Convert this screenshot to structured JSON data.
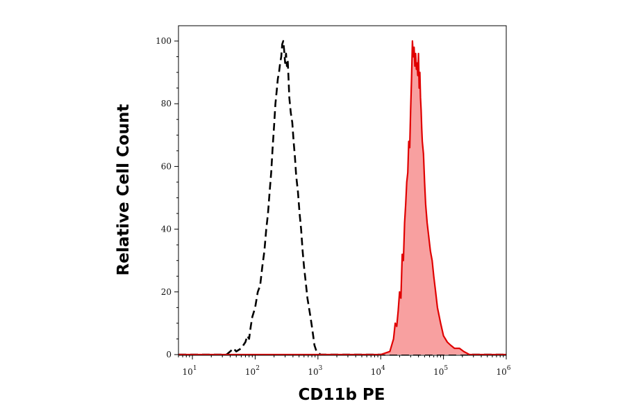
{
  "chart_data": {
    "type": "area",
    "xlabel": "CD11b PE",
    "ylabel": "Relative Cell Count",
    "x_scale": "log",
    "xlim": [
      6,
      1000000
    ],
    "ylim": [
      0,
      100
    ],
    "x_ticks": [
      {
        "base": "10",
        "exp": "1",
        "value": 10
      },
      {
        "base": "10",
        "exp": "2",
        "value": 100
      },
      {
        "base": "10",
        "exp": "3",
        "value": 1000
      },
      {
        "base": "10",
        "exp": "4",
        "value": 10000
      },
      {
        "base": "10",
        "exp": "5",
        "value": 100000
      },
      {
        "base": "10",
        "exp": "6",
        "value": 1000000
      }
    ],
    "y_ticks": [
      "0",
      "20",
      "40",
      "60",
      "80",
      "100"
    ],
    "grid": false,
    "series": [
      {
        "style": "dashed",
        "color": "#000000",
        "fill": "none",
        "x": [
          6,
          15,
          25,
          35,
          40,
          45,
          50,
          60,
          70,
          75,
          80,
          85,
          90,
          100,
          110,
          120,
          130,
          140,
          150,
          160,
          170,
          180,
          190,
          200,
          210,
          220,
          230,
          240,
          250,
          260,
          270,
          280,
          290,
          300,
          310,
          320,
          330,
          340,
          350,
          370,
          390,
          410,
          430,
          450,
          480,
          510,
          540,
          570,
          600,
          640,
          680,
          720,
          760,
          800,
          840,
          880,
          950,
          1100,
          2000,
          10000,
          100000,
          1000000
        ],
        "y": [
          0,
          0,
          0,
          0,
          1,
          2,
          1,
          2,
          4,
          6,
          5,
          9,
          12,
          15,
          20,
          22,
          28,
          33,
          40,
          45,
          52,
          58,
          66,
          73,
          80,
          84,
          88,
          90,
          93,
          95,
          99,
          100,
          97,
          93,
          96,
          92,
          94,
          88,
          82,
          77,
          74,
          68,
          63,
          57,
          52,
          45,
          40,
          33,
          28,
          23,
          18,
          15,
          12,
          9,
          6,
          3,
          1,
          0,
          0,
          0,
          0,
          0
        ]
      },
      {
        "style": "solid",
        "color": "#e00000",
        "fill": "#f8a0a0",
        "x": [
          6,
          10000,
          14000,
          16000,
          17000,
          18000,
          19000,
          20000,
          21000,
          22000,
          23000,
          24000,
          25000,
          26000,
          27000,
          28000,
          29000,
          30000,
          31000,
          32000,
          33000,
          34000,
          35000,
          36000,
          37000,
          38000,
          39000,
          40000,
          41000,
          42000,
          43000,
          44000,
          45000,
          46000,
          48000,
          50000,
          52000,
          55000,
          58000,
          62000,
          66000,
          70000,
          75000,
          80000,
          90000,
          100000,
          115000,
          130000,
          150000,
          180000,
          210000,
          260000,
          1000000
        ],
        "y": [
          0,
          0,
          1,
          5,
          10,
          9,
          14,
          20,
          18,
          32,
          30,
          42,
          48,
          55,
          58,
          68,
          66,
          78,
          88,
          100,
          95,
          98,
          92,
          96,
          91,
          93,
          89,
          96,
          85,
          90,
          82,
          78,
          72,
          68,
          64,
          55,
          48,
          42,
          38,
          33,
          30,
          25,
          20,
          15,
          10,
          6,
          4,
          3,
          2,
          2,
          1,
          0,
          0
        ]
      }
    ]
  }
}
